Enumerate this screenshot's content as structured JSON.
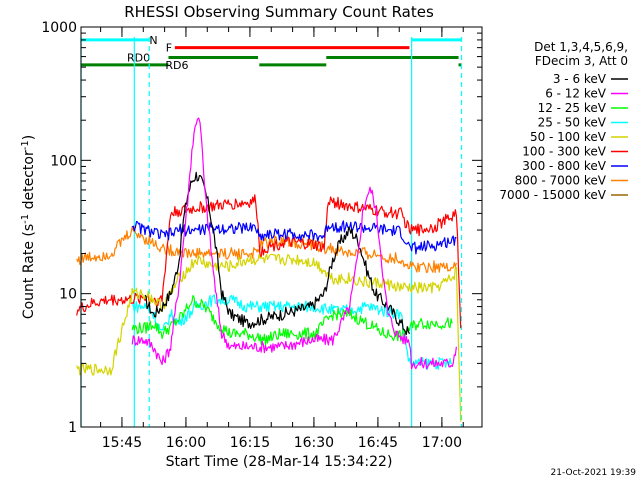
{
  "chart_data": {
    "type": "line",
    "title": "RHESSI Observing Summary Count Rates",
    "xlabel": "Start Time (28-Mar-14 15:34:22)",
    "ylabel_parts": [
      "Count Rate (s",
      "-1",
      " detector",
      "-1",
      ")"
    ],
    "y_scale": "log",
    "ylim": [
      1,
      1000
    ],
    "xlim_minutes": [
      1.0,
      95.0
    ],
    "y_ticks": [
      {
        "v": 1,
        "label": "1"
      },
      {
        "v": 10,
        "label": "10"
      },
      {
        "v": 100,
        "label": "100"
      },
      {
        "v": 1000,
        "label": "1000"
      }
    ],
    "x_ticks": [
      {
        "v": 10.6,
        "label": "15:45"
      },
      {
        "v": 25.6,
        "label": "16:00"
      },
      {
        "v": 40.6,
        "label": "16:15"
      },
      {
        "v": 55.6,
        "label": "16:30"
      },
      {
        "v": 70.6,
        "label": "16:45"
      },
      {
        "v": 85.6,
        "label": "17:00"
      }
    ],
    "legend_header": [
      "Det 1,3,4,5,6,9,",
      "FDecim 3, Att 0"
    ],
    "series": [
      {
        "name": "3 - 6 keV",
        "color": "#000000",
        "points": [
          [
            16,
            9
          ],
          [
            18,
            7
          ],
          [
            20,
            8
          ],
          [
            22,
            10
          ],
          [
            23,
            13
          ],
          [
            24,
            18
          ],
          [
            25,
            35
          ],
          [
            26,
            55
          ],
          [
            27,
            70
          ],
          [
            28,
            78
          ],
          [
            29,
            72
          ],
          [
            30,
            60
          ],
          [
            31,
            45
          ],
          [
            32,
            30
          ],
          [
            33,
            18
          ],
          [
            34,
            10
          ],
          [
            36,
            7
          ],
          [
            40,
            6
          ],
          [
            48,
            7
          ],
          [
            55,
            8
          ],
          [
            58,
            10
          ],
          [
            60,
            18
          ],
          [
            62,
            25
          ],
          [
            64,
            30
          ],
          [
            66,
            25
          ],
          [
            68,
            15
          ],
          [
            70,
            10
          ],
          [
            73,
            8
          ],
          [
            76,
            6
          ],
          [
            78,
            5
          ]
        ]
      },
      {
        "name": "6 - 12 keV",
        "color": "#ff00ff",
        "points": [
          [
            13,
            4.5
          ],
          [
            16,
            4.5
          ],
          [
            18,
            4
          ],
          [
            20,
            3
          ],
          [
            22,
            4
          ],
          [
            24,
            12
          ],
          [
            26,
            50
          ],
          [
            27,
            120
          ],
          [
            28,
            200
          ],
          [
            28.6,
            220
          ],
          [
            29.2,
            150
          ],
          [
            30,
            60
          ],
          [
            31,
            30
          ],
          [
            32,
            15
          ],
          [
            33,
            8
          ],
          [
            34,
            5
          ],
          [
            36,
            4
          ],
          [
            40,
            4
          ],
          [
            48,
            4
          ],
          [
            55,
            4.5
          ],
          [
            60,
            4.5
          ],
          [
            64,
            8
          ],
          [
            66,
            20
          ],
          [
            67,
            40
          ],
          [
            68,
            55
          ],
          [
            69,
            60
          ],
          [
            70,
            45
          ],
          [
            71,
            25
          ],
          [
            72,
            12
          ],
          [
            73,
            7
          ],
          [
            75,
            5
          ],
          [
            77,
            4.5
          ],
          [
            78,
            4.5
          ],
          [
            78.5,
            3
          ],
          [
            81,
            3
          ],
          [
            84,
            3
          ],
          [
            88,
            3
          ],
          [
            89,
            4
          ]
        ]
      },
      {
        "name": "12 - 25 keV",
        "color": "#00ff00",
        "points": [
          [
            13,
            5.5
          ],
          [
            16,
            5.5
          ],
          [
            18,
            6
          ],
          [
            20,
            5
          ],
          [
            23,
            6
          ],
          [
            25,
            7
          ],
          [
            27,
            9
          ],
          [
            30,
            8
          ],
          [
            33,
            6
          ],
          [
            36,
            5
          ],
          [
            40,
            5
          ],
          [
            44,
            4.5
          ],
          [
            48,
            5
          ],
          [
            52,
            5
          ],
          [
            56,
            5
          ],
          [
            58,
            6
          ],
          [
            60,
            7
          ],
          [
            64,
            7
          ],
          [
            68,
            6
          ],
          [
            72,
            5
          ],
          [
            76,
            4.8
          ],
          [
            78,
            5.5
          ],
          [
            80,
            6
          ],
          [
            84,
            6
          ],
          [
            88,
            6
          ]
        ]
      },
      {
        "name": "25 - 50 keV",
        "color": "#00ffff",
        "points": [
          [
            13,
            8
          ],
          [
            16,
            8
          ],
          [
            18,
            7
          ],
          [
            20,
            5
          ],
          [
            22,
            7
          ],
          [
            24,
            6
          ],
          [
            26,
            7
          ],
          [
            28,
            8
          ],
          [
            32,
            9
          ],
          [
            36,
            9
          ],
          [
            40,
            8
          ],
          [
            44,
            8
          ],
          [
            48,
            8
          ],
          [
            52,
            8
          ],
          [
            56,
            8
          ],
          [
            60,
            7.5
          ],
          [
            64,
            7.5
          ],
          [
            68,
            8
          ],
          [
            72,
            7.5
          ],
          [
            76,
            7
          ],
          [
            78,
            3
          ],
          [
            82,
            3
          ],
          [
            86,
            3
          ],
          [
            88,
            3
          ]
        ]
      },
      {
        "name": "50 - 100 keV",
        "color": "#d4d400",
        "points": [
          [
            0,
            2.7
          ],
          [
            4,
            2.7
          ],
          [
            8,
            2.7
          ],
          [
            13,
            10
          ],
          [
            16,
            10
          ],
          [
            18,
            9
          ],
          [
            20,
            8
          ],
          [
            22,
            10
          ],
          [
            24,
            13
          ],
          [
            26,
            15
          ],
          [
            28,
            18
          ],
          [
            32,
            16
          ],
          [
            36,
            16
          ],
          [
            40,
            18
          ],
          [
            44,
            18
          ],
          [
            48,
            18
          ],
          [
            52,
            18
          ],
          [
            56,
            17
          ],
          [
            58,
            15
          ],
          [
            60,
            13
          ],
          [
            64,
            13
          ],
          [
            68,
            12
          ],
          [
            72,
            12
          ],
          [
            76,
            11
          ],
          [
            80,
            11
          ],
          [
            84,
            11
          ],
          [
            88,
            13
          ],
          [
            89,
            15
          ],
          [
            90,
            1.1
          ]
        ]
      },
      {
        "name": "100 - 300 keV",
        "color": "#ff0000",
        "points": [
          [
            0,
            7.5
          ],
          [
            4,
            8.5
          ],
          [
            8,
            9
          ],
          [
            13,
            9
          ],
          [
            16,
            9.5
          ],
          [
            18,
            9
          ],
          [
            20,
            9
          ],
          [
            22,
            40
          ],
          [
            24,
            42
          ],
          [
            26,
            42
          ],
          [
            28,
            44
          ],
          [
            32,
            45
          ],
          [
            36,
            47
          ],
          [
            40,
            48
          ],
          [
            42,
            50
          ],
          [
            43,
            20
          ],
          [
            44,
            22
          ],
          [
            48,
            24
          ],
          [
            52,
            24
          ],
          [
            56,
            23
          ],
          [
            58,
            22
          ],
          [
            59,
            50
          ],
          [
            61,
            48
          ],
          [
            64,
            45
          ],
          [
            68,
            43
          ],
          [
            72,
            41
          ],
          [
            76,
            40
          ],
          [
            78,
            30
          ],
          [
            80,
            30
          ],
          [
            84,
            32
          ],
          [
            88,
            38
          ],
          [
            89,
            42
          ],
          [
            90,
            5.5
          ]
        ]
      },
      {
        "name": "300 - 800 keV",
        "color": "#0000ff",
        "points": [
          [
            13,
            33
          ],
          [
            16,
            30
          ],
          [
            18,
            29
          ],
          [
            20,
            27
          ],
          [
            22,
            28
          ],
          [
            24,
            30
          ],
          [
            26,
            30
          ],
          [
            28,
            30
          ],
          [
            32,
            31
          ],
          [
            36,
            31
          ],
          [
            40,
            31
          ],
          [
            42,
            32
          ],
          [
            43,
            26
          ],
          [
            44,
            28
          ],
          [
            48,
            28
          ],
          [
            52,
            28
          ],
          [
            56,
            27
          ],
          [
            58,
            27
          ],
          [
            59,
            33
          ],
          [
            61,
            32
          ],
          [
            64,
            32
          ],
          [
            68,
            31
          ],
          [
            72,
            30
          ],
          [
            76,
            29
          ],
          [
            78,
            22
          ],
          [
            80,
            22
          ],
          [
            84,
            23
          ],
          [
            88,
            25
          ],
          [
            89,
            26
          ]
        ]
      },
      {
        "name": "800 - 7000 keV",
        "color": "#ff8000",
        "points": [
          [
            0,
            18
          ],
          [
            4,
            19
          ],
          [
            8,
            20
          ],
          [
            13,
            30
          ],
          [
            16,
            26
          ],
          [
            18,
            24
          ],
          [
            20,
            22
          ],
          [
            22,
            21
          ],
          [
            24,
            21
          ],
          [
            26,
            20
          ],
          [
            28,
            20
          ],
          [
            32,
            20
          ],
          [
            36,
            20
          ],
          [
            40,
            20
          ],
          [
            42,
            20
          ],
          [
            43,
            23
          ],
          [
            44,
            24
          ],
          [
            48,
            25
          ],
          [
            52,
            24
          ],
          [
            56,
            23
          ],
          [
            58,
            22
          ],
          [
            59,
            22
          ],
          [
            61,
            21
          ],
          [
            64,
            20
          ],
          [
            68,
            20
          ],
          [
            72,
            19
          ],
          [
            76,
            18
          ],
          [
            78,
            16
          ],
          [
            80,
            16
          ],
          [
            84,
            16
          ],
          [
            88,
            16
          ],
          [
            89,
            17
          ]
        ]
      },
      {
        "name": "7000 - 15000 keV",
        "color": "#996600",
        "points": [
          [
            90,
            1.1
          ]
        ]
      }
    ],
    "region_lines": [
      {
        "x": 1.0,
        "color": "#00ffff",
        "style": "solid"
      },
      {
        "x": 13.5,
        "color": "#00ffff",
        "style": "solid"
      },
      {
        "x": 17.0,
        "color": "#00ffff",
        "style": "dashed"
      },
      {
        "x": 78.5,
        "color": "#00ffff",
        "style": "solid"
      },
      {
        "x": 90.2,
        "color": "#00ffff",
        "style": "dashed"
      }
    ],
    "flag_bars": [
      {
        "label": "N",
        "color": "#00ffff",
        "y": 800,
        "segments": [
          [
            1.0,
            17.0
          ],
          [
            78.5,
            90.2
          ]
        ],
        "label_at": [
          18.0,
          17.0
        ]
      },
      {
        "label": "F",
        "color": "#ff0000",
        "y": 700,
        "segments": [
          [
            23.0,
            78.0
          ]
        ],
        "label_at": [
          21.6,
          23.0
        ]
      },
      {
        "label": "RD0",
        "color": "#008000",
        "y": 590,
        "segments": [
          [
            21.5,
            42.5
          ],
          [
            58.5,
            89.5
          ]
        ],
        "label_at": [
          14.5,
          21.5
        ]
      },
      {
        "label": "RD6",
        "color": "#008000",
        "y": 520,
        "segments": [
          [
            1.0,
            21.5
          ],
          [
            42.8,
            58.5
          ],
          [
            89.5,
            90.2
          ]
        ],
        "label_at": [
          23.5,
          23.5
        ]
      }
    ]
  },
  "timestamp": "21-Oct-2021 19:39"
}
